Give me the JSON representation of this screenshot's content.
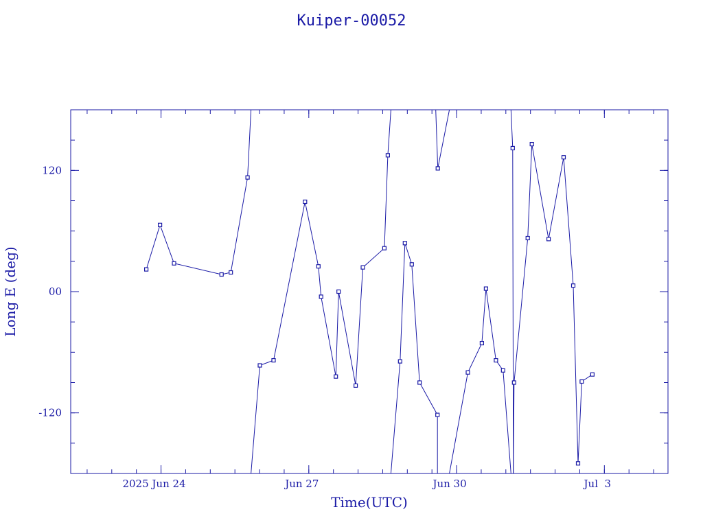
{
  "chart_data": {
    "type": "line",
    "title": "Kuiper-00052",
    "xlabel": "Time(UTC)",
    "ylabel": "Long E (deg)",
    "xlim": [
      "2025-06-22 04:00",
      "2025-07-04 07:00"
    ],
    "ylim": [
      -180,
      180
    ],
    "y_ticks": [
      {
        "value": 120,
        "label": "120"
      },
      {
        "value": 0,
        "label": "00"
      },
      {
        "value": -120,
        "label": "-120"
      }
    ],
    "x_ticks": [
      {
        "value": "2025-06-24 00:00",
        "label": "2025 Jun 24"
      },
      {
        "value": "2025-06-27 00:00",
        "label": "Jun 27"
      },
      {
        "value": "2025-06-30 00:00",
        "label": "Jun 30"
      },
      {
        "value": "2025-07-03 00:00",
        "label": "Jul  3"
      }
    ],
    "grid": false,
    "color": "#1a1aa6",
    "series": [
      {
        "points": [
          {
            "x": "2025-06-23 16:50",
            "y": 22
          },
          {
            "x": "2025-06-23 23:30",
            "y": 66
          },
          {
            "x": "2025-06-24 06:20",
            "y": 28
          },
          {
            "x": "2025-06-25 05:30",
            "y": 17
          },
          {
            "x": "2025-06-25 10:00",
            "y": 19
          },
          {
            "x": "2025-06-25 18:10",
            "y": 113
          },
          {
            "x": "2025-06-25 19:50",
            "y": 180
          }
        ]
      },
      {
        "points": [
          {
            "x": "2025-06-25 19:50",
            "y": -180
          },
          {
            "x": "2025-06-26 00:10",
            "y": -73
          },
          {
            "x": "2025-06-26 06:50",
            "y": -68
          },
          {
            "x": "2025-06-26 22:10",
            "y": 89
          },
          {
            "x": "2025-06-27 04:40",
            "y": 25
          },
          {
            "x": "2025-06-27 06:00",
            "y": -5
          },
          {
            "x": "2025-06-27 13:10",
            "y": -84
          },
          {
            "x": "2025-06-27 14:30",
            "y": 0
          },
          {
            "x": "2025-06-27 22:50",
            "y": -93
          },
          {
            "x": "2025-06-28 02:20",
            "y": 24
          },
          {
            "x": "2025-06-28 12:50",
            "y": 43
          },
          {
            "x": "2025-06-28 14:30",
            "y": 135
          },
          {
            "x": "2025-06-28 16:00",
            "y": 180
          }
        ]
      },
      {
        "points": [
          {
            "x": "2025-06-28 16:00",
            "y": -180
          },
          {
            "x": "2025-06-28 20:30",
            "y": -69
          },
          {
            "x": "2025-06-28 22:50",
            "y": 48
          },
          {
            "x": "2025-06-29 02:10",
            "y": 27
          },
          {
            "x": "2025-06-29 06:00",
            "y": -90
          },
          {
            "x": "2025-06-29 14:40",
            "y": -122
          },
          {
            "x": "2025-06-29 14:40",
            "y": -180
          }
        ]
      },
      {
        "points": [
          {
            "x": "2025-06-29 13:50",
            "y": 180
          },
          {
            "x": "2025-06-29 14:50",
            "y": 122
          },
          {
            "x": "2025-06-29 20:30",
            "y": 180
          }
        ]
      },
      {
        "points": [
          {
            "x": "2025-06-29 20:30",
            "y": -180
          },
          {
            "x": "2025-06-30 05:30",
            "y": -80
          },
          {
            "x": "2025-06-30 12:20",
            "y": -51
          },
          {
            "x": "2025-06-30 14:20",
            "y": 3
          },
          {
            "x": "2025-06-30 19:10",
            "y": -68
          },
          {
            "x": "2025-06-30 22:40",
            "y": -78
          },
          {
            "x": "2025-07-01 02:30",
            "y": -180
          }
        ]
      },
      {
        "points": [
          {
            "x": "2025-07-01 02:30",
            "y": 180
          },
          {
            "x": "2025-07-01 03:20",
            "y": 142
          },
          {
            "x": "2025-07-01 03:40",
            "y": -180
          }
        ]
      },
      {
        "points": [
          {
            "x": "2025-07-01 03:40",
            "y": -180
          },
          {
            "x": "2025-07-01 04:00",
            "y": -90
          },
          {
            "x": "2025-07-01 10:40",
            "y": 53
          },
          {
            "x": "2025-07-01 12:40",
            "y": 146
          },
          {
            "x": "2025-07-01 20:50",
            "y": 52
          },
          {
            "x": "2025-07-02 04:10",
            "y": 133
          },
          {
            "x": "2025-07-02 08:50",
            "y": 6
          },
          {
            "x": "2025-07-02 11:10",
            "y": -170
          },
          {
            "x": "2025-07-02 13:00",
            "y": -89
          },
          {
            "x": "2025-07-02 18:10",
            "y": -82
          }
        ]
      }
    ]
  }
}
